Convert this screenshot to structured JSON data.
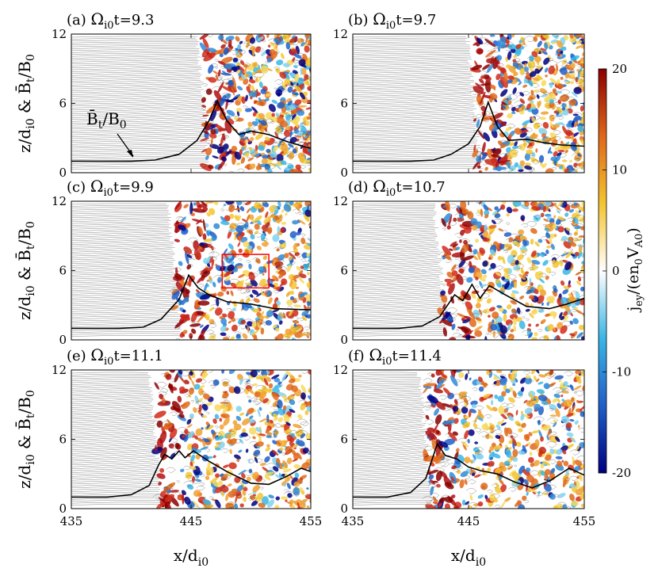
{
  "figure": {
    "panels": [
      {
        "label": "(a) ",
        "omega": "Ω",
        "sub": "i0",
        "time": "t=9.3"
      },
      {
        "label": "(b) ",
        "omega": "Ω",
        "sub": "i0",
        "time": "t=9.7"
      },
      {
        "label": "(c) ",
        "omega": "Ω",
        "sub": "i0",
        "time": "t=9.9"
      },
      {
        "label": "(d) ",
        "omega": "Ω",
        "sub": "i0",
        "time": "t=10.7"
      },
      {
        "label": "(e) ",
        "omega": "Ω",
        "sub": "i0",
        "time": "t=11.1"
      },
      {
        "label": "(f) ",
        "omega": "Ω",
        "sub": "i0",
        "time": "t=11.4"
      }
    ],
    "ylabel": {
      "main": "z/d",
      "sub": "i0",
      "mid": " & ",
      "bbar": "B̄",
      "sub2": "t",
      "tail": "/B",
      "sub3": "0"
    },
    "xlabel": {
      "main": "x/d",
      "sub": "i0"
    },
    "annotation": {
      "main": "B̄",
      "sub": "t",
      "tail": "/B",
      "sub2": "0"
    },
    "colorbar": {
      "label_main": "j",
      "label_sub": "ey",
      "label_tail": "/(en",
      "label_sub2": "0",
      "label_v": "V",
      "label_sub3": "A0",
      "label_close": ")",
      "ticks": [
        "20",
        "10",
        "0",
        "-10",
        "-20"
      ],
      "colors": [
        "#000080",
        "#1f5fc9",
        "#39b6e6",
        "#ffffff",
        "#f4c430",
        "#e0681a",
        "#8b0000"
      ]
    },
    "accent": {
      "box": "#ff0000",
      "profile": "#000000"
    }
  },
  "chart_data": {
    "type": "heatmap",
    "xlim": [
      435,
      455
    ],
    "ylim": [
      0,
      12
    ],
    "xticks": [
      "435",
      "445",
      "455"
    ],
    "yticks": [
      "0",
      "6",
      "12"
    ],
    "colorbar_range": [
      -20,
      20
    ],
    "panels": [
      {
        "id": "a",
        "time": 9.3,
        "front_x": 447.2,
        "profile": [
          [
            435,
            1
          ],
          [
            440,
            1
          ],
          [
            442,
            1.1
          ],
          [
            444,
            1.6
          ],
          [
            445.5,
            2.8
          ],
          [
            446.5,
            4.5
          ],
          [
            447.2,
            6.2
          ],
          [
            448,
            4.5
          ],
          [
            449,
            3.3
          ],
          [
            450,
            3.6
          ],
          [
            451.5,
            3.3
          ],
          [
            453,
            2.7
          ],
          [
            455,
            2.1
          ]
        ]
      },
      {
        "id": "b",
        "time": 9.7,
        "front_x": 446.7,
        "profile": [
          [
            435,
            1
          ],
          [
            440,
            1
          ],
          [
            442,
            1.1
          ],
          [
            443.5,
            1.6
          ],
          [
            445,
            2.5
          ],
          [
            446,
            4
          ],
          [
            446.7,
            6.1
          ],
          [
            447.5,
            4
          ],
          [
            448.5,
            2.8
          ],
          [
            450,
            2.9
          ],
          [
            451.5,
            2.6
          ],
          [
            453,
            2.4
          ],
          [
            455,
            2.3
          ]
        ]
      },
      {
        "id": "c",
        "time": 9.9,
        "front_x": 444.8,
        "profile": [
          [
            435,
            1
          ],
          [
            439,
            1
          ],
          [
            441,
            1.1
          ],
          [
            442.5,
            1.8
          ],
          [
            444,
            3.5
          ],
          [
            444.8,
            5.6
          ],
          [
            445.6,
            4.5
          ],
          [
            446.5,
            3.9
          ],
          [
            448,
            3.3
          ],
          [
            450,
            3.1
          ],
          [
            452,
            2.7
          ],
          [
            455,
            2.6
          ]
        ]
      },
      {
        "id": "d",
        "time": 10.7,
        "front_x": 443.8,
        "profile": [
          [
            435,
            1
          ],
          [
            439,
            1
          ],
          [
            441,
            1.2
          ],
          [
            442.5,
            2
          ],
          [
            443.8,
            3.9
          ],
          [
            444.5,
            3.4
          ],
          [
            445.3,
            4.8
          ],
          [
            446,
            3.6
          ],
          [
            446.8,
            4.7
          ],
          [
            448,
            4
          ],
          [
            450,
            2.9
          ],
          [
            452,
            2.7
          ],
          [
            453.5,
            3.1
          ],
          [
            455,
            3.6
          ]
        ]
      },
      {
        "id": "e",
        "time": 11.1,
        "front_x": 443.2,
        "profile": [
          [
            435,
            1
          ],
          [
            438,
            1
          ],
          [
            440,
            1.2
          ],
          [
            441.5,
            2
          ],
          [
            442.3,
            3.8
          ],
          [
            442.8,
            4.7
          ],
          [
            443.4,
            4.3
          ],
          [
            444,
            5
          ],
          [
            444.5,
            4.4
          ],
          [
            445.2,
            5
          ],
          [
            446.5,
            4.1
          ],
          [
            448,
            3.2
          ],
          [
            450,
            2.2
          ],
          [
            451.5,
            2.1
          ],
          [
            453,
            2.8
          ],
          [
            454.2,
            3.5
          ],
          [
            455,
            3.2
          ]
        ]
      },
      {
        "id": "f",
        "time": 11.4,
        "front_x": 442.5,
        "profile": [
          [
            435,
            1
          ],
          [
            438,
            1
          ],
          [
            440,
            1.4
          ],
          [
            441.3,
            2.6
          ],
          [
            442.3,
            5.6
          ],
          [
            443,
            4.6
          ],
          [
            444,
            4.3
          ],
          [
            445,
            3.6
          ],
          [
            446,
            3.3
          ],
          [
            447.5,
            3
          ],
          [
            449,
            2.3
          ],
          [
            450.5,
            1.8
          ],
          [
            452,
            2.4
          ],
          [
            453.7,
            3.5
          ],
          [
            455,
            2.9
          ]
        ]
      }
    ]
  }
}
